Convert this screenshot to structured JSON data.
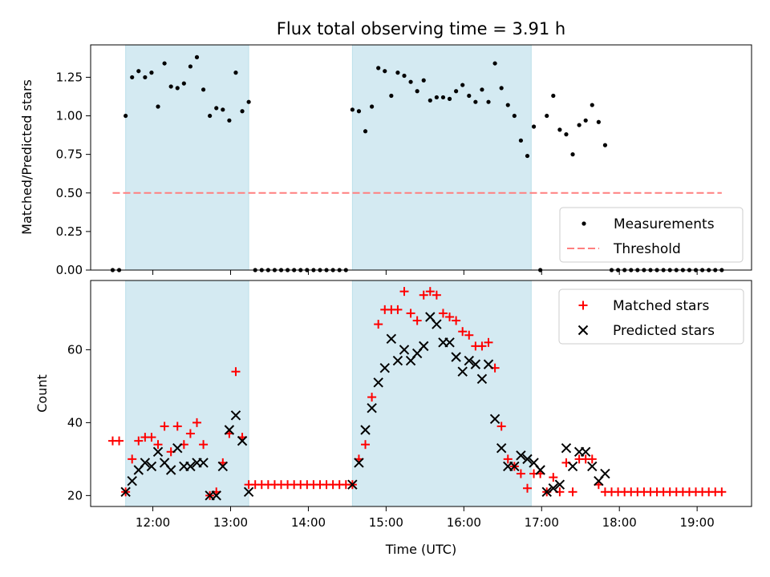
{
  "chart_data": [
    {
      "type": "scatter",
      "title": "Flux total observing time = 3.91 h",
      "xlabel": "",
      "ylabel": "Matched/Predicted stars",
      "xlim": [
        "11:12",
        "19:42"
      ],
      "ylim": [
        0,
        1.46
      ],
      "yticks": [
        "0.00",
        "0.25",
        "0.50",
        "0.75",
        "1.00",
        "1.25"
      ],
      "shaded_intervals": [
        [
          "11:39",
          "13:14"
        ],
        [
          "14:34",
          "16:52"
        ]
      ],
      "shade_color": "#add8e6",
      "legend": {
        "position": "lower-right",
        "entries": [
          "Measurements",
          "Threshold"
        ]
      },
      "threshold": {
        "name": "Threshold",
        "value": 0.5,
        "x_range": [
          "11:29",
          "19:19"
        ],
        "color": "#ff7f7f"
      },
      "series": [
        {
          "name": "Measurements",
          "marker": "dot",
          "color": "#000000",
          "points": [
            [
              "11:29",
              0
            ],
            [
              "11:34",
              0
            ],
            [
              "11:39",
              1.0
            ],
            [
              "11:44",
              1.25
            ],
            [
              "11:49",
              1.29
            ],
            [
              "11:54",
              1.25
            ],
            [
              "11:59",
              1.28
            ],
            [
              "12:04",
              1.06
            ],
            [
              "12:09",
              1.34
            ],
            [
              "12:14",
              1.19
            ],
            [
              "12:19",
              1.18
            ],
            [
              "12:24",
              1.21
            ],
            [
              "12:29",
              1.32
            ],
            [
              "12:34",
              1.38
            ],
            [
              "12:39",
              1.17
            ],
            [
              "12:44",
              1.0
            ],
            [
              "12:49",
              1.05
            ],
            [
              "12:54",
              1.04
            ],
            [
              "12:59",
              0.97
            ],
            [
              "13:04",
              1.28
            ],
            [
              "13:09",
              1.03
            ],
            [
              "13:14",
              1.09
            ],
            [
              "13:19",
              0
            ],
            [
              "13:24",
              0
            ],
            [
              "13:29",
              0
            ],
            [
              "13:34",
              0
            ],
            [
              "13:39",
              0
            ],
            [
              "13:44",
              0
            ],
            [
              "13:49",
              0
            ],
            [
              "13:54",
              0
            ],
            [
              "13:59",
              0
            ],
            [
              "14:04",
              0
            ],
            [
              "14:09",
              0
            ],
            [
              "14:14",
              0
            ],
            [
              "14:19",
              0
            ],
            [
              "14:24",
              0
            ],
            [
              "14:29",
              0
            ],
            [
              "14:34",
              1.04
            ],
            [
              "14:39",
              1.03
            ],
            [
              "14:44",
              0.9
            ],
            [
              "14:49",
              1.06
            ],
            [
              "14:54",
              1.31
            ],
            [
              "14:59",
              1.29
            ],
            [
              "15:04",
              1.13
            ],
            [
              "15:09",
              1.28
            ],
            [
              "15:14",
              1.26
            ],
            [
              "15:19",
              1.22
            ],
            [
              "15:24",
              1.16
            ],
            [
              "15:29",
              1.23
            ],
            [
              "15:34",
              1.1
            ],
            [
              "15:39",
              1.12
            ],
            [
              "15:44",
              1.12
            ],
            [
              "15:49",
              1.11
            ],
            [
              "15:54",
              1.16
            ],
            [
              "15:59",
              1.2
            ],
            [
              "16:04",
              1.13
            ],
            [
              "16:09",
              1.09
            ],
            [
              "16:14",
              1.17
            ],
            [
              "16:19",
              1.09
            ],
            [
              "16:24",
              1.34
            ],
            [
              "16:29",
              1.18
            ],
            [
              "16:34",
              1.07
            ],
            [
              "16:39",
              1.0
            ],
            [
              "16:44",
              0.84
            ],
            [
              "16:49",
              0.74
            ],
            [
              "16:54",
              0.93
            ],
            [
              "16:59",
              0
            ],
            [
              "17:04",
              1.0
            ],
            [
              "17:09",
              1.13
            ],
            [
              "17:14",
              0.91
            ],
            [
              "17:19",
              0.88
            ],
            [
              "17:24",
              0.75
            ],
            [
              "17:29",
              0.94
            ],
            [
              "17:34",
              0.97
            ],
            [
              "17:39",
              1.07
            ],
            [
              "17:44",
              0.96
            ],
            [
              "17:49",
              0.81
            ],
            [
              "17:54",
              0
            ],
            [
              "17:59",
              0
            ],
            [
              "18:04",
              0
            ],
            [
              "18:09",
              0
            ],
            [
              "18:14",
              0
            ],
            [
              "18:19",
              0
            ],
            [
              "18:24",
              0
            ],
            [
              "18:29",
              0
            ],
            [
              "18:34",
              0
            ],
            [
              "18:39",
              0
            ],
            [
              "18:44",
              0
            ],
            [
              "18:49",
              0
            ],
            [
              "18:54",
              0
            ],
            [
              "18:59",
              0
            ],
            [
              "19:04",
              0
            ],
            [
              "19:09",
              0
            ],
            [
              "19:14",
              0
            ],
            [
              "19:19",
              0
            ]
          ]
        }
      ]
    },
    {
      "type": "scatter",
      "title": "",
      "xlabel": "Time (UTC)",
      "ylabel": "Count",
      "xlim": [
        "11:12",
        "19:42"
      ],
      "ylim": [
        17,
        79
      ],
      "xticks": [
        "12:00",
        "13:00",
        "14:00",
        "15:00",
        "16:00",
        "17:00",
        "18:00",
        "19:00"
      ],
      "yticks": [
        "20",
        "40",
        "60"
      ],
      "shaded_intervals": [
        [
          "11:39",
          "13:14"
        ],
        [
          "14:34",
          "16:52"
        ]
      ],
      "shade_color": "#add8e6",
      "legend": {
        "position": "upper-right",
        "entries": [
          "Matched stars",
          "Predicted stars"
        ]
      },
      "series": [
        {
          "name": "Matched stars",
          "marker": "plus",
          "color": "#ff0000",
          "points": [
            [
              "11:29",
              35
            ],
            [
              "11:34",
              35
            ],
            [
              "11:39",
              21
            ],
            [
              "11:44",
              30
            ],
            [
              "11:49",
              35
            ],
            [
              "11:54",
              36
            ],
            [
              "11:59",
              36
            ],
            [
              "12:04",
              34
            ],
            [
              "12:09",
              39
            ],
            [
              "12:14",
              32
            ],
            [
              "12:19",
              39
            ],
            [
              "12:24",
              34
            ],
            [
              "12:29",
              37
            ],
            [
              "12:34",
              40
            ],
            [
              "12:39",
              34
            ],
            [
              "12:44",
              20
            ],
            [
              "12:49",
              21
            ],
            [
              "12:54",
              29
            ],
            [
              "12:59",
              37
            ],
            [
              "13:04",
              54
            ],
            [
              "13:09",
              36
            ],
            [
              "13:14",
              23
            ],
            [
              "13:19",
              23
            ],
            [
              "13:24",
              23
            ],
            [
              "13:29",
              23
            ],
            [
              "13:34",
              23
            ],
            [
              "13:39",
              23
            ],
            [
              "13:44",
              23
            ],
            [
              "13:49",
              23
            ],
            [
              "13:54",
              23
            ],
            [
              "13:59",
              23
            ],
            [
              "14:04",
              23
            ],
            [
              "14:09",
              23
            ],
            [
              "14:14",
              23
            ],
            [
              "14:19",
              23
            ],
            [
              "14:24",
              23
            ],
            [
              "14:29",
              23
            ],
            [
              "14:34",
              23
            ],
            [
              "14:39",
              30
            ],
            [
              "14:44",
              34
            ],
            [
              "14:49",
              47
            ],
            [
              "14:54",
              67
            ],
            [
              "14:59",
              71
            ],
            [
              "15:04",
              71
            ],
            [
              "15:09",
              71
            ],
            [
              "15:14",
              76
            ],
            [
              "15:19",
              70
            ],
            [
              "15:24",
              68
            ],
            [
              "15:29",
              75
            ],
            [
              "15:34",
              76
            ],
            [
              "15:39",
              75
            ],
            [
              "15:44",
              70
            ],
            [
              "15:49",
              69
            ],
            [
              "15:54",
              68
            ],
            [
              "15:59",
              65
            ],
            [
              "16:04",
              64
            ],
            [
              "16:09",
              61
            ],
            [
              "16:14",
              61
            ],
            [
              "16:19",
              62
            ],
            [
              "16:24",
              55
            ],
            [
              "16:29",
              39
            ],
            [
              "16:34",
              30
            ],
            [
              "16:39",
              28
            ],
            [
              "16:44",
              26
            ],
            [
              "16:49",
              22
            ],
            [
              "16:54",
              26
            ],
            [
              "16:59",
              26
            ],
            [
              "17:04",
              21
            ],
            [
              "17:09",
              25
            ],
            [
              "17:14",
              21
            ],
            [
              "17:19",
              29
            ],
            [
              "17:24",
              21
            ],
            [
              "17:29",
              30
            ],
            [
              "17:34",
              30
            ],
            [
              "17:39",
              30
            ],
            [
              "17:44",
              23
            ],
            [
              "17:49",
              21
            ],
            [
              "17:54",
              21
            ],
            [
              "17:59",
              21
            ],
            [
              "18:04",
              21
            ],
            [
              "18:09",
              21
            ],
            [
              "18:14",
              21
            ],
            [
              "18:19",
              21
            ],
            [
              "18:24",
              21
            ],
            [
              "18:29",
              21
            ],
            [
              "18:34",
              21
            ],
            [
              "18:39",
              21
            ],
            [
              "18:44",
              21
            ],
            [
              "18:49",
              21
            ],
            [
              "18:54",
              21
            ],
            [
              "18:59",
              21
            ],
            [
              "19:04",
              21
            ],
            [
              "19:09",
              21
            ],
            [
              "19:14",
              21
            ],
            [
              "19:19",
              21
            ]
          ]
        },
        {
          "name": "Predicted stars",
          "marker": "x",
          "color": "#000000",
          "points": [
            [
              "11:39",
              21
            ],
            [
              "11:44",
              24
            ],
            [
              "11:49",
              27
            ],
            [
              "11:54",
              29
            ],
            [
              "11:59",
              28
            ],
            [
              "12:04",
              32
            ],
            [
              "12:09",
              29
            ],
            [
              "12:14",
              27
            ],
            [
              "12:19",
              33
            ],
            [
              "12:24",
              28
            ],
            [
              "12:29",
              28
            ],
            [
              "12:34",
              29
            ],
            [
              "12:39",
              29
            ],
            [
              "12:44",
              20
            ],
            [
              "12:49",
              20
            ],
            [
              "12:54",
              28
            ],
            [
              "12:59",
              38
            ],
            [
              "13:04",
              42
            ],
            [
              "13:09",
              35
            ],
            [
              "13:14",
              21
            ],
            [
              "14:34",
              23
            ],
            [
              "14:39",
              29
            ],
            [
              "14:44",
              38
            ],
            [
              "14:49",
              44
            ],
            [
              "14:54",
              51
            ],
            [
              "14:59",
              55
            ],
            [
              "15:04",
              63
            ],
            [
              "15:09",
              57
            ],
            [
              "15:14",
              60
            ],
            [
              "15:19",
              57
            ],
            [
              "15:24",
              59
            ],
            [
              "15:29",
              61
            ],
            [
              "15:34",
              69
            ],
            [
              "15:39",
              67
            ],
            [
              "15:44",
              62
            ],
            [
              "15:49",
              62
            ],
            [
              "15:54",
              58
            ],
            [
              "15:59",
              54
            ],
            [
              "16:04",
              57
            ],
            [
              "16:09",
              56
            ],
            [
              "16:14",
              52
            ],
            [
              "16:19",
              56
            ],
            [
              "16:24",
              41
            ],
            [
              "16:29",
              33
            ],
            [
              "16:34",
              28
            ],
            [
              "16:39",
              28
            ],
            [
              "16:44",
              31
            ],
            [
              "16:49",
              30
            ],
            [
              "16:54",
              29
            ],
            [
              "16:59",
              27
            ],
            [
              "17:04",
              21
            ],
            [
              "17:09",
              22
            ],
            [
              "17:14",
              23
            ],
            [
              "17:19",
              33
            ],
            [
              "17:24",
              28
            ],
            [
              "17:29",
              32
            ],
            [
              "17:34",
              32
            ],
            [
              "17:39",
              28
            ],
            [
              "17:44",
              24
            ],
            [
              "17:49",
              26
            ]
          ]
        }
      ]
    }
  ]
}
